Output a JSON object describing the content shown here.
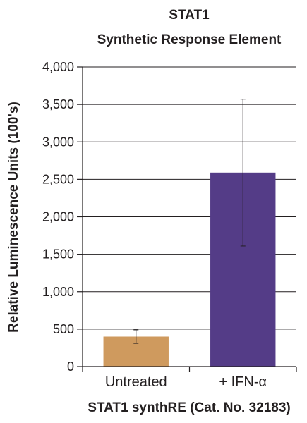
{
  "chart_data": {
    "type": "bar",
    "title_lines": [
      "STAT1",
      "Synthetic Response Element"
    ],
    "xlabel": "STAT1 synthRE (Cat. No. 32183)",
    "ylabel": "Relative Luminescence Units (100's)",
    "categories": [
      "Untreated",
      "+ IFN-α"
    ],
    "values": [
      400,
      2590
    ],
    "errors": [
      90,
      980
    ],
    "bar_colors": [
      "#cf9a5e",
      "#543c87"
    ],
    "ylim": [
      0,
      4000
    ],
    "yticks": [
      0,
      500,
      1000,
      1500,
      2000,
      2500,
      3000,
      3500,
      4000
    ],
    "ytick_labels": [
      "0",
      "500",
      "1,000",
      "1,500",
      "2,000",
      "2,500",
      "3,000",
      "3,500",
      "4,000"
    ],
    "grid": true
  }
}
